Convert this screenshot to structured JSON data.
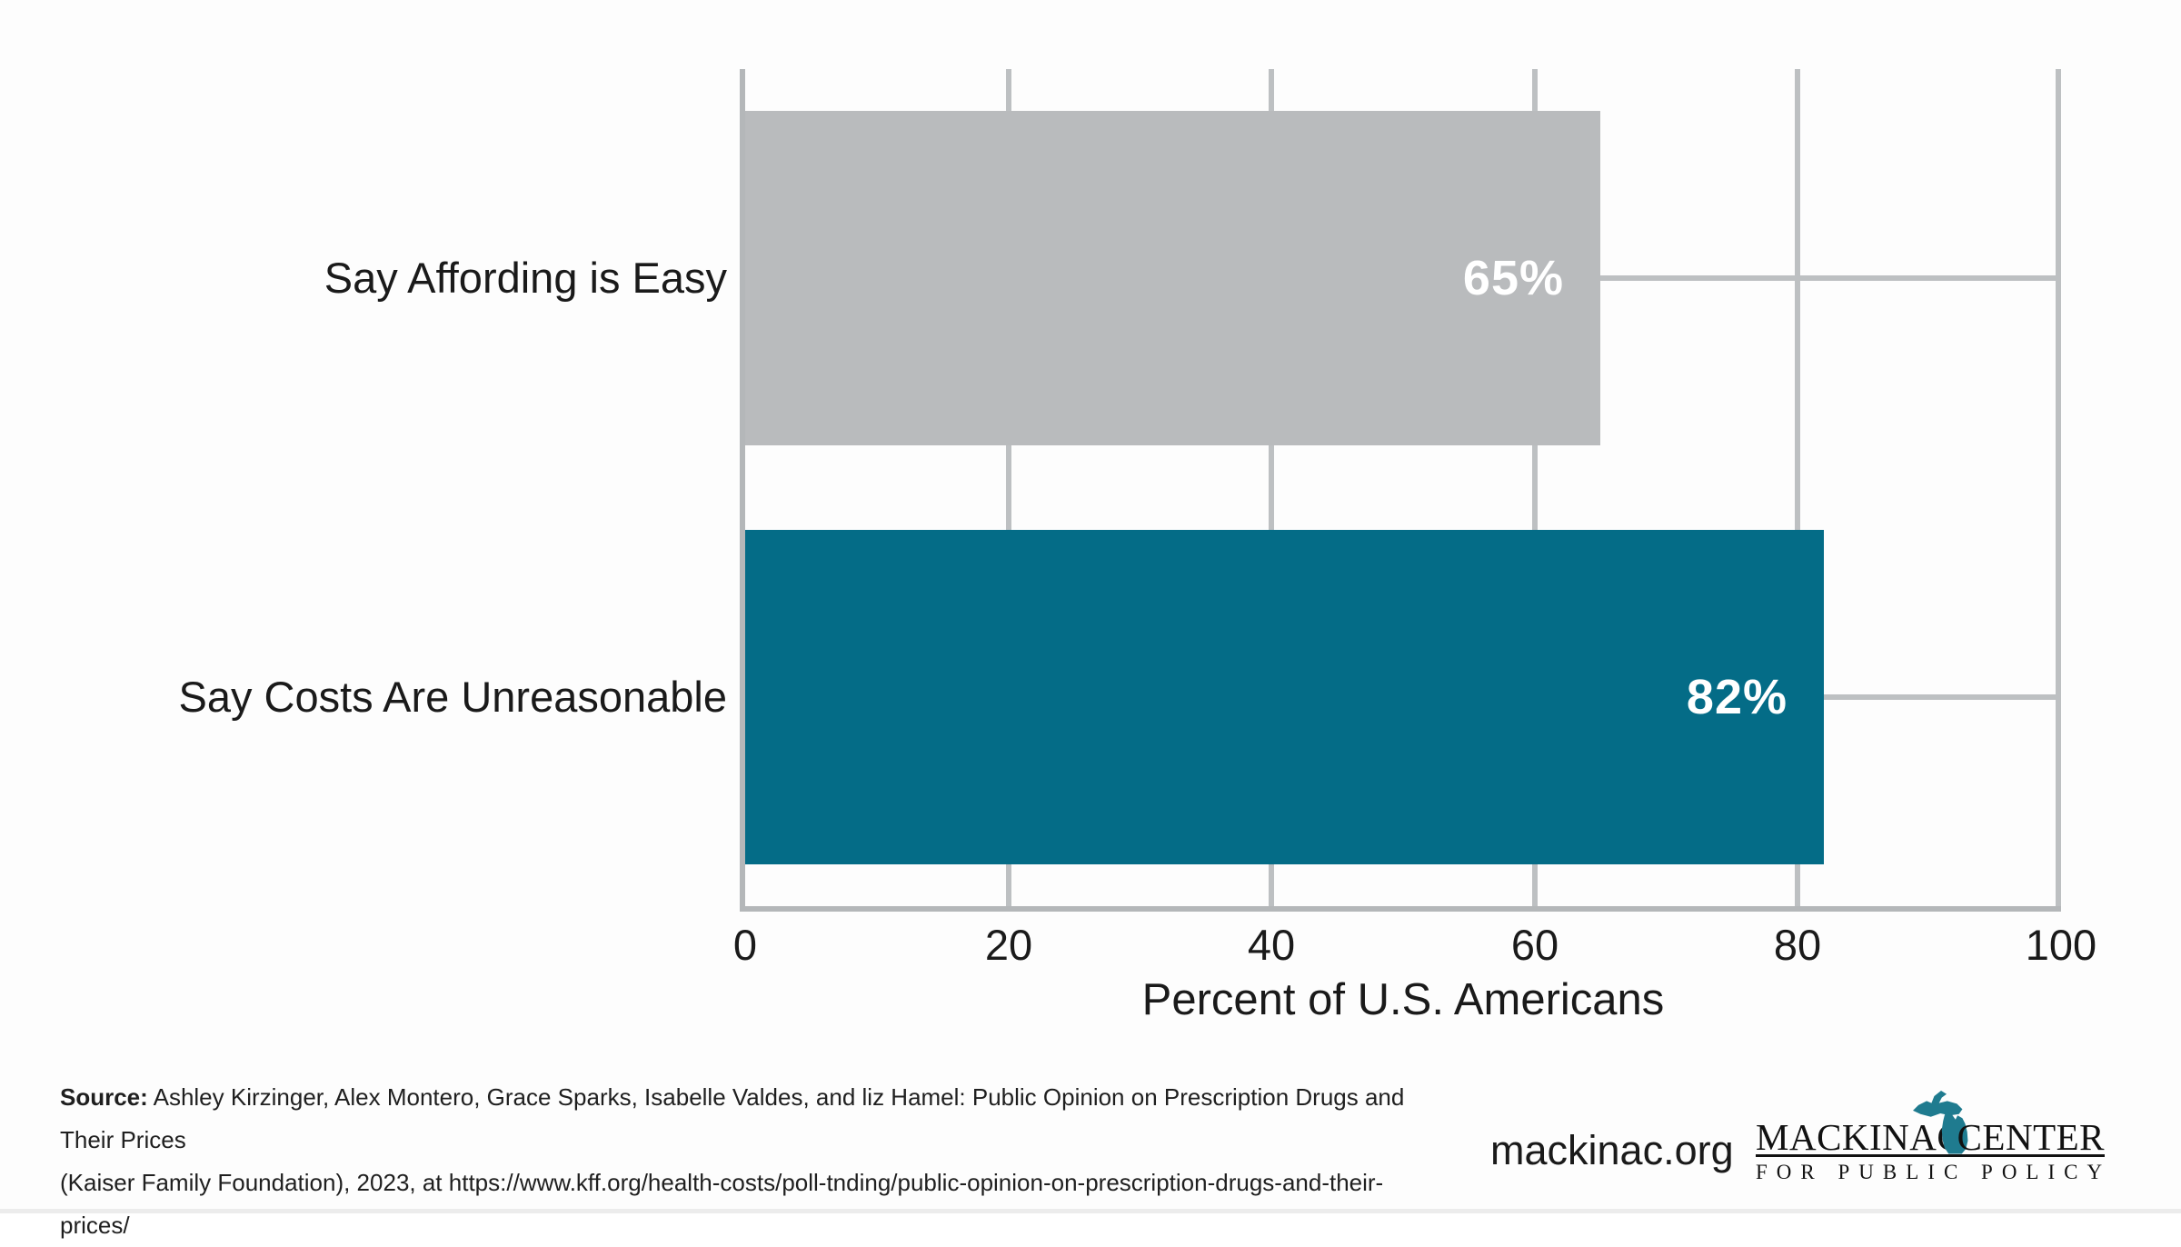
{
  "chart_data": {
    "type": "bar",
    "orientation": "horizontal",
    "categories": [
      "Say Affording is Easy",
      "Say Costs Are Unreasonable"
    ],
    "values": [
      65,
      82
    ],
    "value_labels": [
      "65%",
      "82%"
    ],
    "bar_colors": [
      "#b9bbbd",
      "#046c87"
    ],
    "title": "",
    "xlabel": "Percent of U.S. Americans",
    "ylabel": "",
    "xlim": [
      0,
      100
    ],
    "xticks": [
      0,
      20,
      40,
      60,
      80,
      100
    ],
    "grid": true,
    "legend": "none",
    "value_label_color": "#ffffff"
  },
  "footer": {
    "source_label": "Source:",
    "source_line1": " Ashley Kirzinger, Alex Montero, Grace Sparks, Isabelle Valdes, and liz Hamel: Public Opinion on Prescription Drugs and Their Prices",
    "source_line2": "(Kaiser Family Foundation), 2023, at https://www.kff.org/health-costs/poll-tnding/public-opinion-on-prescription-drugs-and-their-prices/",
    "website": "mackinac.org",
    "logo": {
      "word1": "MACKINAC",
      "word2": "CENTER",
      "tagline": "FOR PUBLIC POLICY"
    }
  },
  "colors": {
    "background": "#fdfdfd",
    "bar_gray": "#b9bbbd",
    "bar_teal": "#046c87",
    "gridline": "#bdc0c2",
    "axis_line": "#b4b7b9",
    "text": "#1a1a1a",
    "logo_teal": "#1f7b8f"
  }
}
